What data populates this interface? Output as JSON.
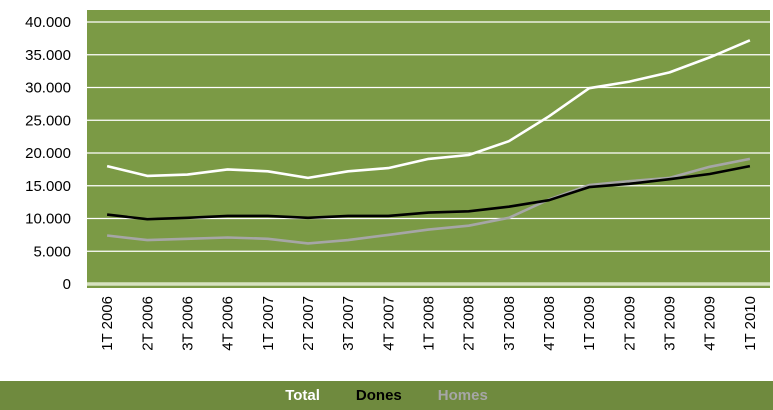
{
  "chart_data": {
    "type": "line",
    "categories": [
      "1T 2006",
      "2T 2006",
      "3T 2006",
      "4T 2006",
      "1T 2007",
      "2T 2007",
      "3T 2007",
      "4T 2007",
      "1T 2008",
      "2T 2008",
      "3T 2008",
      "4T 2008",
      "1T 2009",
      "2T 2009",
      "3T 2009",
      "4T 2009",
      "1T 2010"
    ],
    "series": [
      {
        "name": "Total",
        "color": "#ffffff",
        "values": [
          18000,
          16500,
          16700,
          17500,
          17200,
          16200,
          17200,
          17700,
          19100,
          19700,
          21800,
          25600,
          29900,
          30900,
          32300,
          34600,
          37200
        ]
      },
      {
        "name": "Dones",
        "color": "#000000",
        "values": [
          10600,
          9900,
          10100,
          10400,
          10400,
          10100,
          10400,
          10400,
          10900,
          11100,
          11800,
          12800,
          14800,
          15300,
          16000,
          16800,
          18000
        ]
      },
      {
        "name": "Homes",
        "color": "#a6a6a6",
        "values": [
          7400,
          6700,
          6900,
          7100,
          6900,
          6200,
          6700,
          7500,
          8300,
          8900,
          10100,
          12900,
          15100,
          15700,
          16200,
          17900,
          19100
        ]
      }
    ],
    "yticks": [
      "40.000",
      "35.000",
      "30.000",
      "25.000",
      "20.000",
      "15.000",
      "10.000",
      "5.000",
      "0"
    ],
    "ylim": [
      0,
      40000
    ],
    "title": "",
    "xlabel": "",
    "ylabel": "",
    "legend_position": "bottom",
    "grid": true,
    "plot_background": "#7b9a45",
    "legend_background": "#6f8a3e"
  }
}
